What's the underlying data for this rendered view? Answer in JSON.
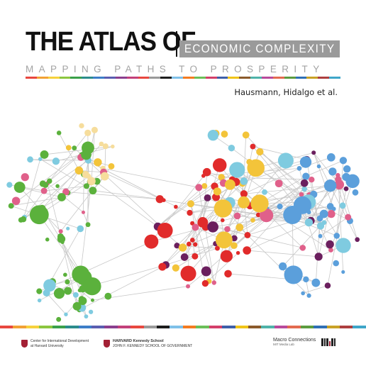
{
  "cover": {
    "title_main": "THE ATLAS OF",
    "title_box": "ECONOMIC COMPLEXITY",
    "subtitle": "MAPPING PATHS TO PROSPERITY",
    "authors": "Hausmann, Hidalgo et al."
  },
  "palette_bar": [
    "#e8473f",
    "#f2a134",
    "#f6d13d",
    "#8cc63f",
    "#3aa04a",
    "#2b8c8c",
    "#3d7ec8",
    "#5a5db0",
    "#8a3f8f",
    "#c2407a",
    "#e8473f",
    "#9a9a9a",
    "#1d1d1d",
    "#7fc0e8",
    "#f47b20",
    "#6bbf59",
    "#d33f6a",
    "#3e5fa8",
    "#f0c419",
    "#8b5a2b",
    "#4fb3a9",
    "#b84a9c",
    "#e26b4f",
    "#5c9c3f",
    "#2f6fb5",
    "#c9a227",
    "#ad3f3f",
    "#3fa6c9"
  ],
  "network_colors": {
    "green": "#5bb13c",
    "red": "#e12b2b",
    "blue": "#5b9fdb",
    "yellow": "#f3c43a",
    "purple": "#6b1f5e",
    "pink": "#e0608a",
    "lightblue": "#7fcbe0",
    "cream": "#f6dd9c",
    "edge": "#c8c8c8"
  },
  "logos": {
    "cid_line1": "Center for International Development",
    "cid_line2": "at Harvard University",
    "hks_name": "HARVARD Kennedy School",
    "hks_sub": "JOHN F. KENNEDY SCHOOL OF GOVERNMENT",
    "macro_name": "Macro Connections",
    "macro_sub": "MIT Media Lab"
  }
}
